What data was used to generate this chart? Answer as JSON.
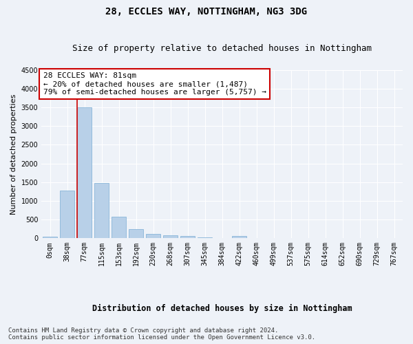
{
  "title1": "28, ECCLES WAY, NOTTINGHAM, NG3 3DG",
  "title2": "Size of property relative to detached houses in Nottingham",
  "xlabel": "Distribution of detached houses by size in Nottingham",
  "ylabel": "Number of detached properties",
  "bar_labels": [
    "0sqm",
    "38sqm",
    "77sqm",
    "115sqm",
    "153sqm",
    "192sqm",
    "230sqm",
    "268sqm",
    "307sqm",
    "345sqm",
    "384sqm",
    "422sqm",
    "460sqm",
    "499sqm",
    "537sqm",
    "575sqm",
    "614sqm",
    "652sqm",
    "690sqm",
    "729sqm",
    "767sqm"
  ],
  "bar_values": [
    40,
    1270,
    3510,
    1480,
    580,
    240,
    115,
    80,
    55,
    30,
    0,
    60,
    0,
    0,
    0,
    0,
    0,
    0,
    0,
    0,
    0
  ],
  "bar_color": "#b8d0e8",
  "bar_edge_color": "#7aadd4",
  "vline_x_index": 2,
  "vline_color": "#cc0000",
  "annotation_text": "28 ECCLES WAY: 81sqm\n← 20% of detached houses are smaller (1,487)\n79% of semi-detached houses are larger (5,757) →",
  "annotation_box_color": "#cc0000",
  "background_color": "#eef2f8",
  "plot_bg_color": "#eef2f8",
  "ylim": [
    0,
    4500
  ],
  "yticks": [
    0,
    500,
    1000,
    1500,
    2000,
    2500,
    3000,
    3500,
    4000,
    4500
  ],
  "footer": "Contains HM Land Registry data © Crown copyright and database right 2024.\nContains public sector information licensed under the Open Government Licence v3.0.",
  "title1_fontsize": 10,
  "title2_fontsize": 9,
  "xlabel_fontsize": 8.5,
  "ylabel_fontsize": 8,
  "tick_fontsize": 7,
  "annotation_fontsize": 8,
  "footer_fontsize": 6.5
}
